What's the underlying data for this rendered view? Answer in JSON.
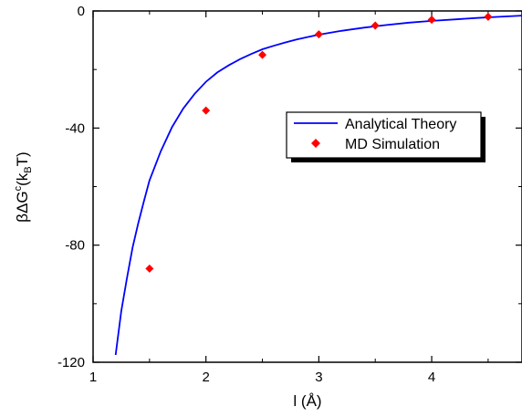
{
  "chart_data": {
    "type": "line",
    "xlabel": "l (Å)",
    "ylabel": "βΔG",
    "ylabel_superscript": "c",
    "ylabel_paren_open": "(k",
    "ylabel_subscript": "B",
    "ylabel_paren_close": "T)",
    "xlim": [
      1.0,
      4.8
    ],
    "ylim": [
      -120,
      0
    ],
    "x_ticks": [
      1,
      2,
      3,
      4
    ],
    "y_ticks": [
      0,
      -40,
      -80,
      -120
    ],
    "grid": false,
    "legend_position": "center-right",
    "series": [
      {
        "name": "Analytical Theory",
        "style": "line",
        "color": "#0000ff",
        "x": [
          1.2,
          1.25,
          1.3,
          1.35,
          1.4,
          1.45,
          1.5,
          1.6,
          1.7,
          1.8,
          1.9,
          2.0,
          2.1,
          2.2,
          2.3,
          2.4,
          2.5,
          2.6,
          2.7,
          2.8,
          2.9,
          3.0,
          3.2,
          3.4,
          3.6,
          3.8,
          4.0,
          4.2,
          4.4,
          4.6,
          4.8
        ],
        "y": [
          -117.5,
          -102.5,
          -91.3,
          -80.8,
          -72.5,
          -65.0,
          -57.9,
          -47.9,
          -39.6,
          -33.3,
          -28.3,
          -24.2,
          -21.0,
          -18.6,
          -16.5,
          -14.7,
          -13.1,
          -11.9,
          -10.8,
          -9.8,
          -8.9,
          -8.1,
          -6.8,
          -5.7,
          -4.8,
          -4.0,
          -3.4,
          -2.9,
          -2.4,
          -2.0,
          -1.6
        ]
      },
      {
        "name": "MD Simulation",
        "style": "marker",
        "marker": "diamond",
        "color": "#ff0000",
        "x": [
          1.5,
          2.0,
          2.5,
          3.0,
          3.5,
          4.0,
          4.5
        ],
        "y": [
          -88.0,
          -34.0,
          -15.0,
          -8.0,
          -5.0,
          -3.0,
          -2.0
        ]
      }
    ]
  }
}
